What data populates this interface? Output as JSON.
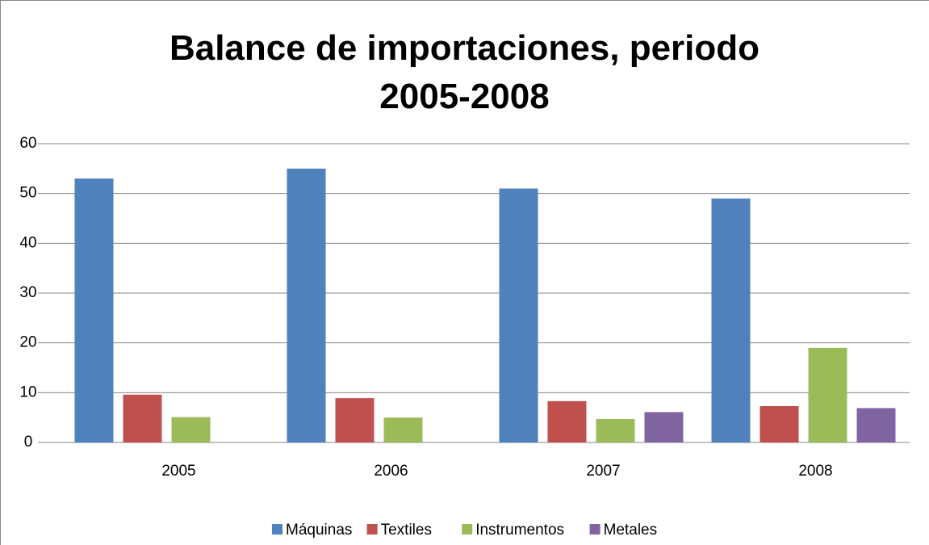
{
  "chart_data": {
    "type": "bar",
    "title": "Balance de importaciones, periodo 2005-2008",
    "categories": [
      "2005",
      "2006",
      "2007",
      "2008"
    ],
    "series": [
      {
        "name": "Máquinas",
        "color": "#4f81bd",
        "values": [
          53,
          55,
          51,
          49
        ]
      },
      {
        "name": "Textiles",
        "color": "#c0504d",
        "values": [
          9.6,
          8.9,
          8.3,
          7.3
        ]
      },
      {
        "name": "Instrumentos",
        "color": "#9bbb59",
        "values": [
          5.1,
          5.0,
          4.7,
          19
        ]
      },
      {
        "name": "Metales",
        "color": "#8064a2",
        "values": [
          null,
          null,
          6.1,
          6.9
        ]
      }
    ],
    "ylim": [
      0,
      60
    ],
    "yticks": [
      0,
      10,
      20,
      30,
      40,
      50,
      60
    ],
    "grid": true,
    "legend": "bottom"
  }
}
